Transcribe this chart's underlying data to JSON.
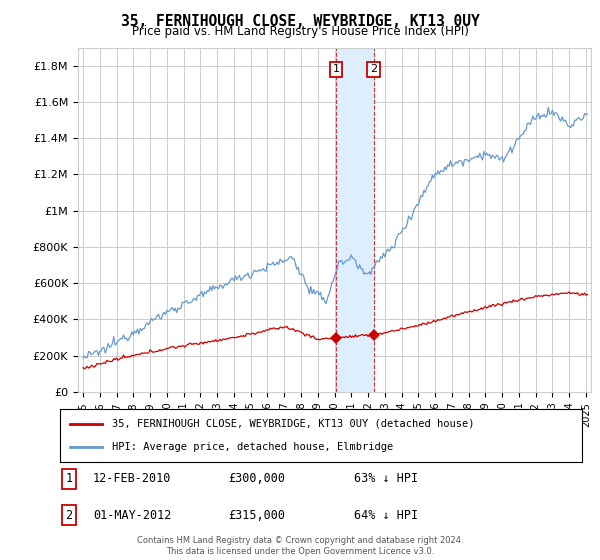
{
  "title": "35, FERNIHOUGH CLOSE, WEYBRIDGE, KT13 0UY",
  "subtitle": "Price paid vs. HM Land Registry's House Price Index (HPI)",
  "legend_label_red": "35, FERNIHOUGH CLOSE, WEYBRIDGE, KT13 0UY (detached house)",
  "legend_label_blue": "HPI: Average price, detached house, Elmbridge",
  "transaction1_label": "1",
  "transaction1_date": "12-FEB-2010",
  "transaction1_price": "£300,000",
  "transaction1_hpi": "63% ↓ HPI",
  "transaction1_year": 2010.1,
  "transaction1_value": 300000,
  "transaction2_label": "2",
  "transaction2_date": "01-MAY-2012",
  "transaction2_price": "£315,000",
  "transaction2_hpi": "64% ↓ HPI",
  "transaction2_year": 2012.33,
  "transaction2_value": 315000,
  "footnote": "Contains HM Land Registry data © Crown copyright and database right 2024.\nThis data is licensed under the Open Government Licence v3.0.",
  "ylim": [
    0,
    1900000
  ],
  "yticks": [
    0,
    200000,
    400000,
    600000,
    800000,
    1000000,
    1200000,
    1400000,
    1600000,
    1800000
  ],
  "ytick_labels": [
    "£0",
    "£200K",
    "£400K",
    "£600K",
    "£800K",
    "£1M",
    "£1.2M",
    "£1.4M",
    "£1.6M",
    "£1.8M"
  ],
  "red_color": "#cc0000",
  "blue_color": "#6699cc",
  "highlight_color": "#ddeeff",
  "grid_color": "#cccccc",
  "background_color": "#ffffff"
}
